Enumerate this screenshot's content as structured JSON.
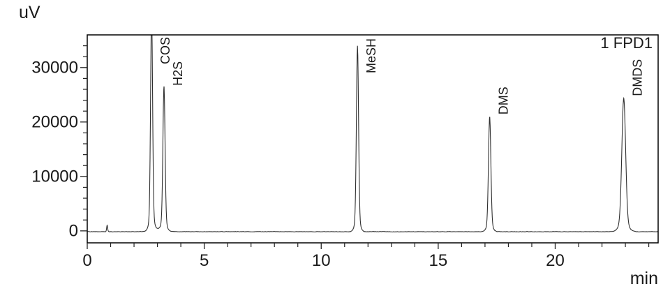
{
  "window": {
    "background": "#ffffff"
  },
  "axis_unit_labels": {
    "y": "uV",
    "x": "min"
  },
  "colors": {
    "text": "#1a1a1a",
    "frame": "#000000",
    "tick": "#222222",
    "trace": "#2f2f2f"
  },
  "chart_data": {
    "type": "line",
    "title": "",
    "ylabel": "uV",
    "xlabel": "min",
    "detector_label": "1 FPD1",
    "xlim": [
      0,
      24.4
    ],
    "ylim": [
      -2200,
      36000
    ],
    "x_major_ticks": [
      0,
      5,
      10,
      15,
      20
    ],
    "x_tick_labels": [
      "0",
      "5",
      "10",
      "15",
      "20"
    ],
    "x_minor_step": 1,
    "y_major_ticks": [
      0,
      10000,
      20000,
      30000
    ],
    "y_tick_labels": [
      "0",
      "10000",
      "20000",
      "30000"
    ],
    "y_minor_step": 2000,
    "grid": false,
    "legend_position": "top-right-inside",
    "baseline_uv": -150,
    "noise_amplitude_uv": 65,
    "baseline_hump": {
      "rt_min": 3.0,
      "height_uv": 450,
      "sigma_min": 0.3
    },
    "peaks": [
      {
        "label": "",
        "rt_min": 0.85,
        "height_uv": 1200,
        "sigma_min": 0.02,
        "clipped": false
      },
      {
        "label": "COS",
        "rt_min": 2.75,
        "height_uv": 40000,
        "sigma_min": 0.042,
        "clipped": true
      },
      {
        "label": "H2S",
        "rt_min": 3.28,
        "height_uv": 26400,
        "sigma_min": 0.045,
        "clipped": false
      },
      {
        "label": "MeSH",
        "rt_min": 11.55,
        "height_uv": 34100,
        "sigma_min": 0.045,
        "clipped": false
      },
      {
        "label": "DMS",
        "rt_min": 17.2,
        "height_uv": 21100,
        "sigma_min": 0.05,
        "clipped": false
      },
      {
        "label": "DMDS",
        "rt_min": 22.93,
        "height_uv": 24500,
        "sigma_min": 0.08,
        "clipped": false
      }
    ]
  }
}
